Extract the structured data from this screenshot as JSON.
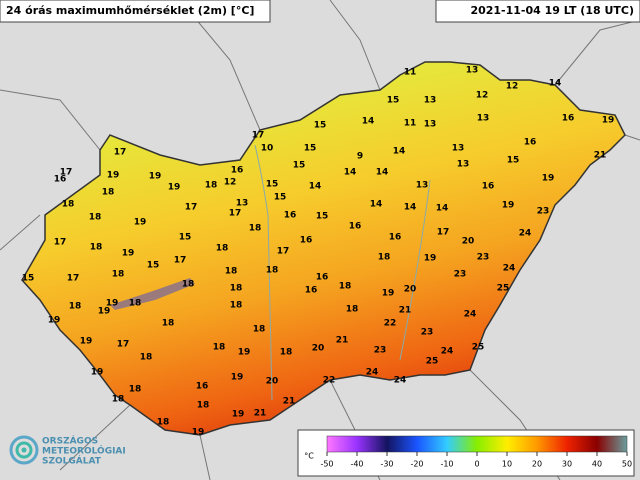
{
  "map": {
    "title": "24 órás maximumhőmérséklet (2m) [°C]",
    "timestamp": "2021-11-04 19 LT (18 UTC)",
    "stations": [
      11,
      13,
      14,
      12,
      12,
      15,
      13,
      16,
      19,
      13,
      11,
      13,
      15,
      14,
      17,
      16,
      13,
      10,
      15,
      9,
      14,
      17,
      21,
      17,
      16,
      15,
      15,
      14,
      14,
      16,
      12,
      13,
      19,
      19,
      19,
      18,
      18,
      15,
      14,
      13,
      16,
      19,
      13,
      15,
      16,
      17,
      17,
      18,
      18,
      19,
      15,
      14,
      14,
      14,
      19,
      23,
      16,
      18,
      24,
      17,
      19,
      15,
      16,
      16,
      17,
      20,
      18,
      18,
      17,
      23,
      24,
      18,
      19,
      15,
      17,
      15,
      17,
      18,
      18,
      18,
      16,
      23,
      18,
      18,
      16,
      18,
      19,
      20,
      25,
      19,
      19,
      18,
      18,
      18,
      18,
      21,
      19,
      18,
      24,
      22,
      23,
      19,
      17,
      18,
      18,
      18,
      20,
      21,
      23,
      24,
      25,
      19,
      18,
      25,
      19,
      19,
      24,
      24,
      22,
      16,
      18,
      20,
      18,
      21,
      18,
      21,
      19,
      18,
      19
    ],
    "colorbar": {
      "unit": "°C",
      "ticks": [
        -50,
        -40,
        -30,
        -20,
        -10,
        0,
        10,
        20,
        30,
        40,
        50
      ],
      "colors": [
        "#ff77ff",
        "#9933ff",
        "#141460",
        "#1a55ff",
        "#33ccff",
        "#88ee00",
        "#ffee00",
        "#ff9900",
        "#ee2200",
        "#8a0000",
        "#6a9e9e"
      ]
    }
  },
  "logo": {
    "lines": [
      "ORSZÁGOS",
      "METEOROLÓGIAI",
      "SZOLGÁLAT"
    ]
  }
}
